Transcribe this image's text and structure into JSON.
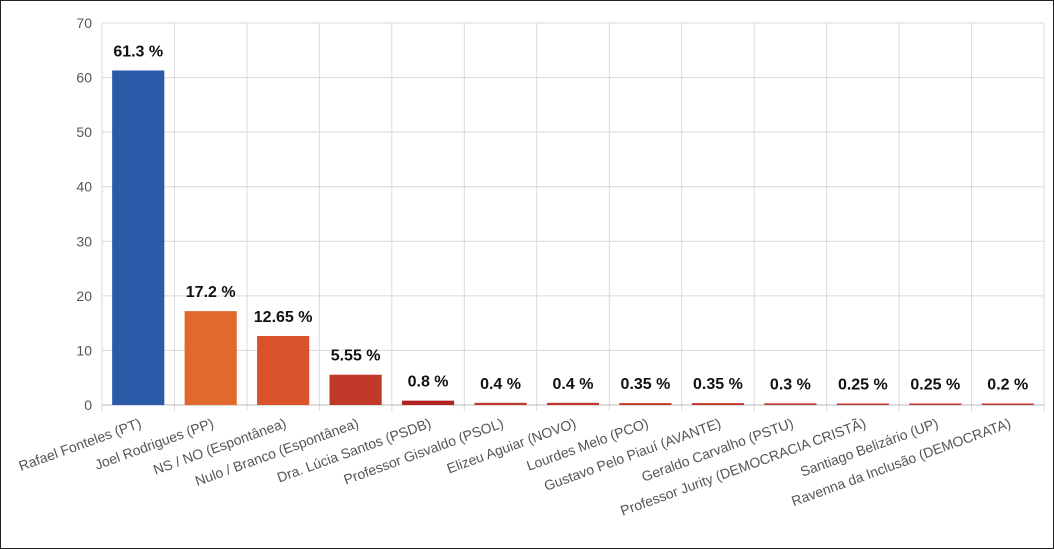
{
  "chart_data": {
    "type": "bar",
    "title": "",
    "xlabel": "",
    "ylabel": "",
    "ylim": [
      0,
      70
    ],
    "yticks": [
      0,
      10,
      20,
      30,
      40,
      50,
      60,
      70
    ],
    "grid": true,
    "categories": [
      "Rafael Fonteles (PT)",
      "Joel Rodrigues (PP)",
      "NS / NO (Espontânea)",
      "Nulo / Branco (Espontânea)",
      "Dra. Lúcia Santos (PSDB)",
      "Professor Gisvaldo (PSOL)",
      "Elizeu Aguiar (NOVO)",
      "Lourdes Melo (PCO)",
      "Gustavo Pelo Piauí (AVANTE)",
      "Geraldo Carvalho (PSTU)",
      "Professor Jurity (DEMOCRACIA CRISTÃ)",
      "Santiago Belizário (UP)",
      "Ravenna da Inclusão (DEMOCRATA)"
    ],
    "values": [
      61.3,
      17.2,
      12.65,
      5.55,
      0.8,
      0.4,
      0.4,
      0.35,
      0.35,
      0.3,
      0.25,
      0.25,
      0.2
    ],
    "data_labels": [
      "61.3 %",
      "17.2 %",
      "12.65 %",
      "5.55 %",
      "0.8 %",
      "0.4 %",
      "0.4 %",
      "0.35 %",
      "0.35 %",
      "0.3 %",
      "0.25 %",
      "0.25 %",
      "0.2 %"
    ],
    "colors": [
      "#2b5aa8",
      "#e0692b",
      "#d9532a",
      "#c0392b",
      "#b22222",
      "#c0392b",
      "#c0392b",
      "#c0392b",
      "#c0392b",
      "#c0392b",
      "#c0392b",
      "#c0392b",
      "#c0392b"
    ]
  }
}
